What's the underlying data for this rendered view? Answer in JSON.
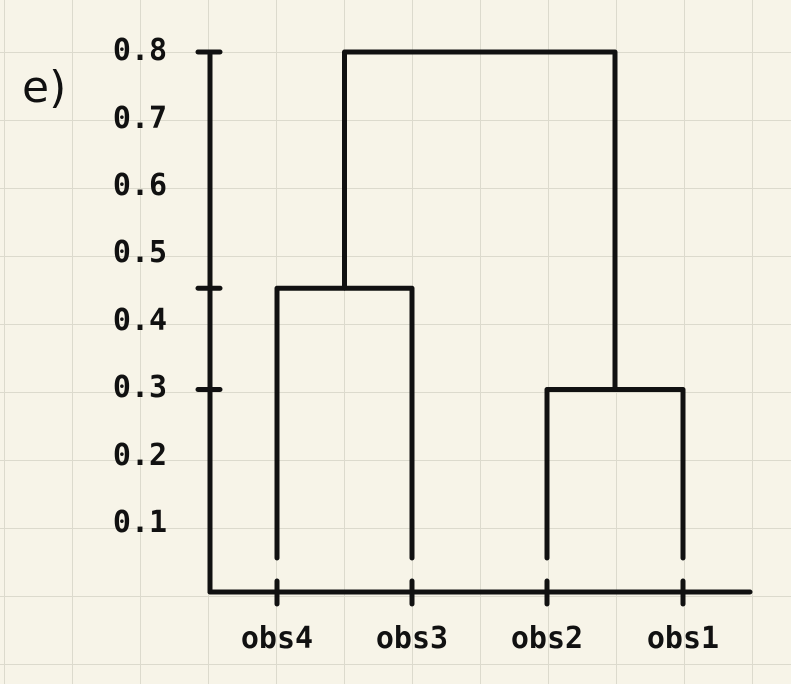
{
  "part_label": "e)",
  "chart_data": {
    "type": "dendrogram",
    "leaves": [
      "obs4",
      "obs3",
      "obs2",
      "obs1"
    ],
    "y_ticks": [
      "0.8",
      "0.7",
      "0.6",
      "0.5",
      "0.4",
      "0.3",
      "0.2",
      "0.1"
    ],
    "ylim": [
      0,
      0.8
    ],
    "merges": [
      {
        "left": "obs4",
        "right": "obs3",
        "height": 0.45
      },
      {
        "left": "obs2",
        "right": "obs1",
        "height": 0.3
      },
      {
        "left": "obs4+obs3",
        "right": "obs2+obs1",
        "height": 0.8
      }
    ],
    "marked_heights": [
      0.8,
      0.45,
      0.3
    ]
  }
}
